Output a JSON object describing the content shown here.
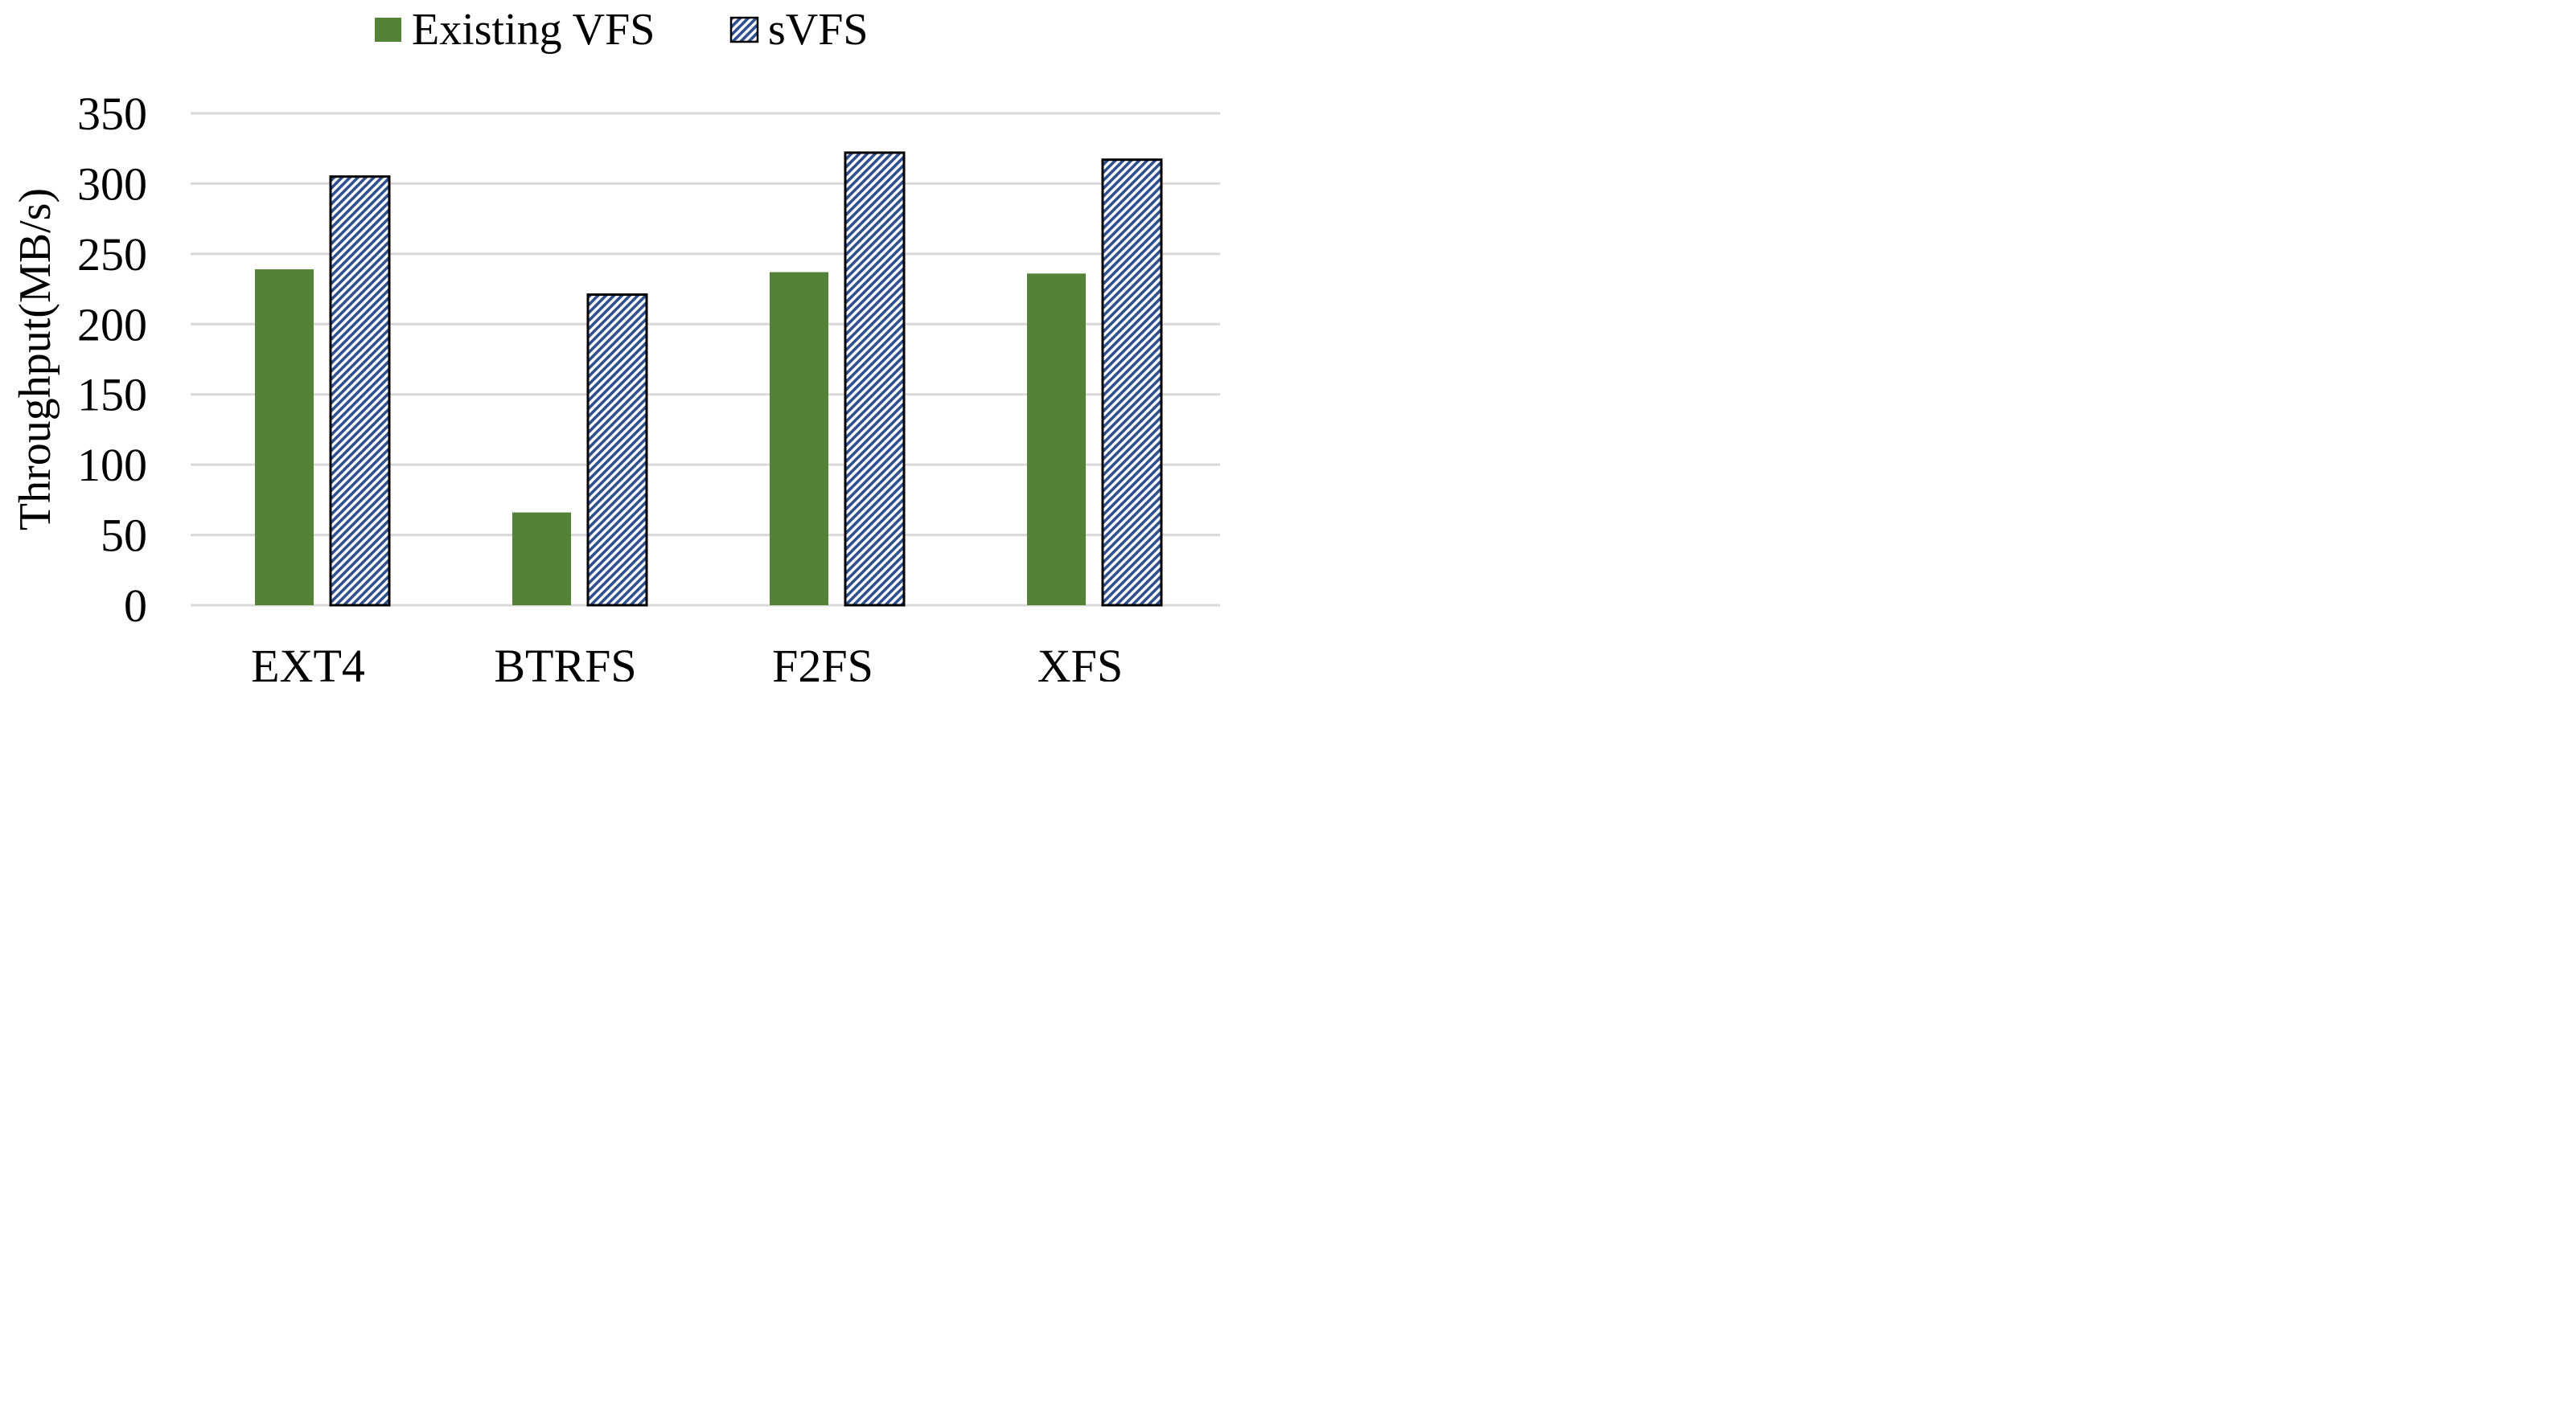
{
  "chart_data": {
    "type": "bar",
    "title": "",
    "xlabel": "",
    "ylabel": "Throughput(MB/s)",
    "categories": [
      "EXT4",
      "BTRFS",
      "F2FS",
      "XFS"
    ],
    "series": [
      {
        "name": "Existing VFS",
        "values": [
          239,
          66,
          237,
          236
        ],
        "color": "#538135",
        "pattern": "solid"
      },
      {
        "name": "sVFS",
        "values": [
          305,
          221,
          322,
          317
        ],
        "color": "#2f4f8f",
        "pattern": "diagonal-stripes"
      }
    ],
    "ylim": [
      0,
      350
    ],
    "yticks": [
      0,
      50,
      100,
      150,
      200,
      250,
      300,
      350
    ],
    "grid": true,
    "legend_position": "top-center"
  }
}
